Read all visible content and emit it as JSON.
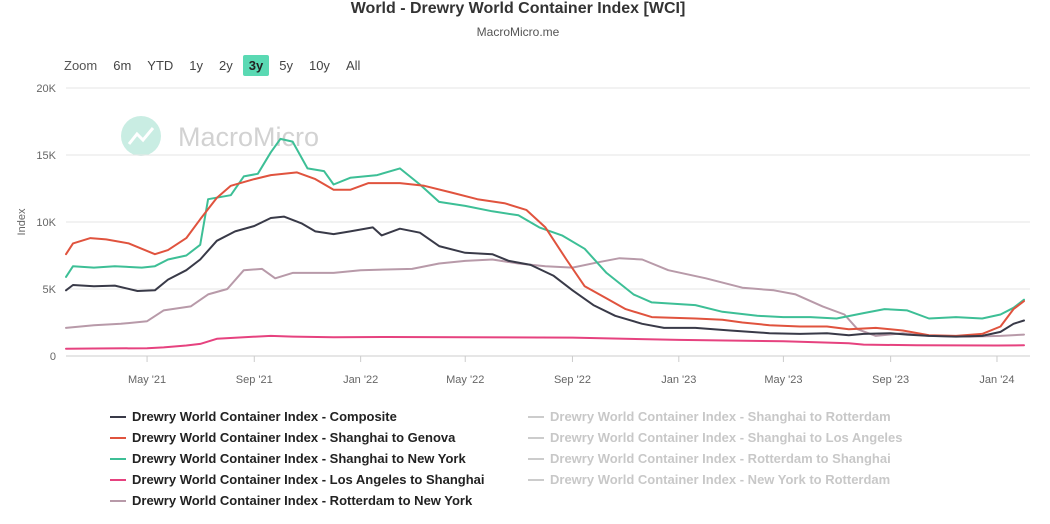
{
  "header": {
    "title": "World - Drewry World Container Index [WCI]",
    "subtitle": "MacroMicro.me"
  },
  "range_selector": {
    "label": "Zoom",
    "buttons": [
      "6m",
      "YTD",
      "1y",
      "2y",
      "3y",
      "5y",
      "10y",
      "All"
    ],
    "active": "3y"
  },
  "watermark": "MacroMicro",
  "colors": {
    "composite": "#393a48",
    "genova": "#e0533e",
    "newyork": "#3dbf96",
    "lashanghai": "#e6427f",
    "rotterdam_ny": "#b89aa9",
    "hidden": "#cccccc",
    "hidden_text": "#c8c8c8",
    "grid": "#e6e6e6",
    "axis_text": "#666666"
  },
  "chart_data": {
    "type": "line",
    "title": "World - Drewry World Container Index [WCI]",
    "ylabel": "Index",
    "ylim": [
      0,
      20000
    ],
    "y_ticks": [
      0,
      5000,
      10000,
      15000,
      20000
    ],
    "y_tick_labels": [
      "0",
      "5K",
      "10K",
      "15K",
      "20K"
    ],
    "x_range": [
      "2021-01-28",
      "2024-02-01"
    ],
    "x_ticks": [
      "2021-05-01",
      "2021-09-01",
      "2022-01-01",
      "2022-05-01",
      "2022-09-01",
      "2023-01-01",
      "2023-05-01",
      "2023-09-01",
      "2024-01-01"
    ],
    "x_tick_labels": [
      "May '21",
      "Sep '21",
      "Jan '22",
      "May '22",
      "Sep '22",
      "Jan '23",
      "May '23",
      "Sep '23",
      "Jan '24"
    ],
    "grid": true,
    "legend_position": "bottom",
    "series": [
      {
        "name": "Drewry World Container Index - Composite",
        "key": "composite",
        "visible": true,
        "points": [
          [
            "2021-01-28",
            4900
          ],
          [
            "2021-02-05",
            5300
          ],
          [
            "2021-03-01",
            5200
          ],
          [
            "2021-03-25",
            5250
          ],
          [
            "2021-04-20",
            4850
          ],
          [
            "2021-05-10",
            4900
          ],
          [
            "2021-05-25",
            5700
          ],
          [
            "2021-06-15",
            6400
          ],
          [
            "2021-07-01",
            7200
          ],
          [
            "2021-07-20",
            8600
          ],
          [
            "2021-08-10",
            9300
          ],
          [
            "2021-09-01",
            9700
          ],
          [
            "2021-09-20",
            10300
          ],
          [
            "2021-10-05",
            10400
          ],
          [
            "2021-10-25",
            9900
          ],
          [
            "2021-11-10",
            9300
          ],
          [
            "2021-12-01",
            9100
          ],
          [
            "2021-12-20",
            9300
          ],
          [
            "2022-01-15",
            9600
          ],
          [
            "2022-01-25",
            9000
          ],
          [
            "2022-02-15",
            9500
          ],
          [
            "2022-03-10",
            9200
          ],
          [
            "2022-04-01",
            8200
          ],
          [
            "2022-05-01",
            7700
          ],
          [
            "2022-06-01",
            7600
          ],
          [
            "2022-06-20",
            7100
          ],
          [
            "2022-07-15",
            6800
          ],
          [
            "2022-08-10",
            6000
          ],
          [
            "2022-09-01",
            4900
          ],
          [
            "2022-09-25",
            3800
          ],
          [
            "2022-10-20",
            3000
          ],
          [
            "2022-11-20",
            2400
          ],
          [
            "2022-12-15",
            2100
          ],
          [
            "2023-01-20",
            2100
          ],
          [
            "2023-03-01",
            1900
          ],
          [
            "2023-04-15",
            1700
          ],
          [
            "2023-05-20",
            1650
          ],
          [
            "2023-06-20",
            1700
          ],
          [
            "2023-07-15",
            1550
          ],
          [
            "2023-08-01",
            1650
          ],
          [
            "2023-09-01",
            1700
          ],
          [
            "2023-09-20",
            1600
          ],
          [
            "2023-10-15",
            1500
          ],
          [
            "2023-11-15",
            1450
          ],
          [
            "2023-12-15",
            1500
          ],
          [
            "2024-01-05",
            1800
          ],
          [
            "2024-01-20",
            2400
          ],
          [
            "2024-02-01",
            2650
          ]
        ]
      },
      {
        "name": "Drewry World Container Index - Shanghai to Genova",
        "key": "genova",
        "visible": true,
        "points": [
          [
            "2021-01-28",
            7600
          ],
          [
            "2021-02-05",
            8400
          ],
          [
            "2021-02-25",
            8800
          ],
          [
            "2021-03-15",
            8700
          ],
          [
            "2021-04-10",
            8400
          ],
          [
            "2021-05-10",
            7600
          ],
          [
            "2021-05-25",
            7900
          ],
          [
            "2021-06-15",
            8800
          ],
          [
            "2021-07-01",
            10200
          ],
          [
            "2021-07-20",
            11800
          ],
          [
            "2021-08-05",
            12700
          ],
          [
            "2021-09-01",
            13200
          ],
          [
            "2021-09-20",
            13500
          ],
          [
            "2021-10-20",
            13700
          ],
          [
            "2021-11-10",
            13200
          ],
          [
            "2021-12-01",
            12400
          ],
          [
            "2021-12-20",
            12400
          ],
          [
            "2022-01-10",
            12900
          ],
          [
            "2022-02-15",
            12900
          ],
          [
            "2022-03-15",
            12700
          ],
          [
            "2022-04-15",
            12200
          ],
          [
            "2022-05-15",
            11700
          ],
          [
            "2022-06-15",
            11400
          ],
          [
            "2022-07-10",
            10900
          ],
          [
            "2022-08-01",
            9600
          ],
          [
            "2022-08-25",
            7200
          ],
          [
            "2022-09-15",
            5200
          ],
          [
            "2022-10-10",
            4300
          ],
          [
            "2022-11-01",
            3500
          ],
          [
            "2022-12-01",
            2900
          ],
          [
            "2023-01-20",
            2800
          ],
          [
            "2023-02-20",
            2700
          ],
          [
            "2023-03-15",
            2500
          ],
          [
            "2023-04-15",
            2300
          ],
          [
            "2023-05-20",
            2200
          ],
          [
            "2023-06-20",
            2200
          ],
          [
            "2023-07-15",
            2000
          ],
          [
            "2023-08-15",
            2100
          ],
          [
            "2023-09-15",
            1900
          ],
          [
            "2023-10-15",
            1550
          ],
          [
            "2023-11-15",
            1500
          ],
          [
            "2023-12-15",
            1650
          ],
          [
            "2024-01-05",
            2200
          ],
          [
            "2024-01-20",
            3500
          ],
          [
            "2024-02-01",
            4100
          ]
        ]
      },
      {
        "name": "Drewry World Container Index - Shanghai to New York",
        "key": "newyork",
        "visible": true,
        "points": [
          [
            "2021-01-28",
            5900
          ],
          [
            "2021-02-05",
            6700
          ],
          [
            "2021-03-01",
            6600
          ],
          [
            "2021-03-25",
            6700
          ],
          [
            "2021-04-25",
            6600
          ],
          [
            "2021-05-10",
            6700
          ],
          [
            "2021-05-25",
            7200
          ],
          [
            "2021-06-15",
            7500
          ],
          [
            "2021-07-01",
            8300
          ],
          [
            "2021-07-10",
            11700
          ],
          [
            "2021-08-05",
            12000
          ],
          [
            "2021-08-20",
            13400
          ],
          [
            "2021-09-05",
            13600
          ],
          [
            "2021-09-20",
            15200
          ],
          [
            "2021-10-01",
            16200
          ],
          [
            "2021-10-15",
            16000
          ],
          [
            "2021-11-01",
            14000
          ],
          [
            "2021-11-20",
            13800
          ],
          [
            "2021-12-01",
            12800
          ],
          [
            "2021-12-20",
            13300
          ],
          [
            "2022-01-20",
            13500
          ],
          [
            "2022-02-15",
            14000
          ],
          [
            "2022-03-10",
            12800
          ],
          [
            "2022-04-01",
            11500
          ],
          [
            "2022-05-01",
            11200
          ],
          [
            "2022-06-01",
            10800
          ],
          [
            "2022-07-01",
            10500
          ],
          [
            "2022-07-25",
            9600
          ],
          [
            "2022-08-20",
            9000
          ],
          [
            "2022-09-15",
            8000
          ],
          [
            "2022-10-10",
            6200
          ],
          [
            "2022-11-10",
            4600
          ],
          [
            "2022-12-01",
            4000
          ],
          [
            "2023-01-20",
            3800
          ],
          [
            "2023-02-20",
            3300
          ],
          [
            "2023-04-01",
            3000
          ],
          [
            "2023-05-01",
            2900
          ],
          [
            "2023-06-01",
            2900
          ],
          [
            "2023-07-01",
            2800
          ],
          [
            "2023-08-01",
            3200
          ],
          [
            "2023-08-25",
            3500
          ],
          [
            "2023-09-20",
            3400
          ],
          [
            "2023-10-15",
            2800
          ],
          [
            "2023-11-15",
            2900
          ],
          [
            "2023-12-15",
            2800
          ],
          [
            "2024-01-05",
            3100
          ],
          [
            "2024-01-20",
            3600
          ],
          [
            "2024-02-01",
            4200
          ]
        ]
      },
      {
        "name": "Drewry World Container Index - Los Angeles to Shanghai",
        "key": "lashanghai",
        "visible": true,
        "points": [
          [
            "2021-01-28",
            540
          ],
          [
            "2021-03-01",
            560
          ],
          [
            "2021-05-01",
            580
          ],
          [
            "2021-05-20",
            640
          ],
          [
            "2021-06-15",
            780
          ],
          [
            "2021-07-01",
            900
          ],
          [
            "2021-07-20",
            1280
          ],
          [
            "2021-08-20",
            1400
          ],
          [
            "2021-09-20",
            1500
          ],
          [
            "2021-10-15",
            1450
          ],
          [
            "2021-12-01",
            1400
          ],
          [
            "2022-02-01",
            1420
          ],
          [
            "2022-05-01",
            1400
          ],
          [
            "2022-09-01",
            1370
          ],
          [
            "2023-01-01",
            1200
          ],
          [
            "2023-05-01",
            1100
          ],
          [
            "2023-07-15",
            950
          ],
          [
            "2023-08-01",
            850
          ],
          [
            "2023-10-01",
            800
          ],
          [
            "2024-01-01",
            780
          ],
          [
            "2024-02-01",
            800
          ]
        ]
      },
      {
        "name": "Drewry World Container Index - Rotterdam to New York",
        "key": "rotterdam_ny",
        "visible": true,
        "points": [
          [
            "2021-01-28",
            2100
          ],
          [
            "2021-03-01",
            2300
          ],
          [
            "2021-04-01",
            2400
          ],
          [
            "2021-05-01",
            2600
          ],
          [
            "2021-05-20",
            3400
          ],
          [
            "2021-06-20",
            3700
          ],
          [
            "2021-07-10",
            4600
          ],
          [
            "2021-08-01",
            5000
          ],
          [
            "2021-08-20",
            6400
          ],
          [
            "2021-09-10",
            6500
          ],
          [
            "2021-09-25",
            5800
          ],
          [
            "2021-10-15",
            6200
          ],
          [
            "2021-12-01",
            6200
          ],
          [
            "2022-01-01",
            6400
          ],
          [
            "2022-03-01",
            6500
          ],
          [
            "2022-04-01",
            6900
          ],
          [
            "2022-05-01",
            7100
          ],
          [
            "2022-06-01",
            7200
          ],
          [
            "2022-07-01",
            6900
          ],
          [
            "2022-08-01",
            6700
          ],
          [
            "2022-09-01",
            6600
          ],
          [
            "2022-10-01",
            7000
          ],
          [
            "2022-10-25",
            7300
          ],
          [
            "2022-11-20",
            7200
          ],
          [
            "2022-12-20",
            6400
          ],
          [
            "2023-02-01",
            5800
          ],
          [
            "2023-03-15",
            5100
          ],
          [
            "2023-04-20",
            4900
          ],
          [
            "2023-05-15",
            4600
          ],
          [
            "2023-06-15",
            3700
          ],
          [
            "2023-07-10",
            3100
          ],
          [
            "2023-07-25",
            2000
          ],
          [
            "2023-08-15",
            1500
          ],
          [
            "2023-09-15",
            1700
          ],
          [
            "2023-10-15",
            1500
          ],
          [
            "2023-12-01",
            1450
          ],
          [
            "2024-01-05",
            1500
          ],
          [
            "2024-02-01",
            1600
          ]
        ]
      },
      {
        "name": "Drewry World Container Index - Shanghai to Rotterdam",
        "key": "hidden",
        "visible": false
      },
      {
        "name": "Drewry World Container Index - Shanghai to Los Angeles",
        "key": "hidden",
        "visible": false
      },
      {
        "name": "Drewry World Container Index - Rotterdam to Shanghai",
        "key": "hidden",
        "visible": false
      },
      {
        "name": "Drewry World Container Index - New York to Rotterdam",
        "key": "hidden",
        "visible": false
      }
    ]
  }
}
